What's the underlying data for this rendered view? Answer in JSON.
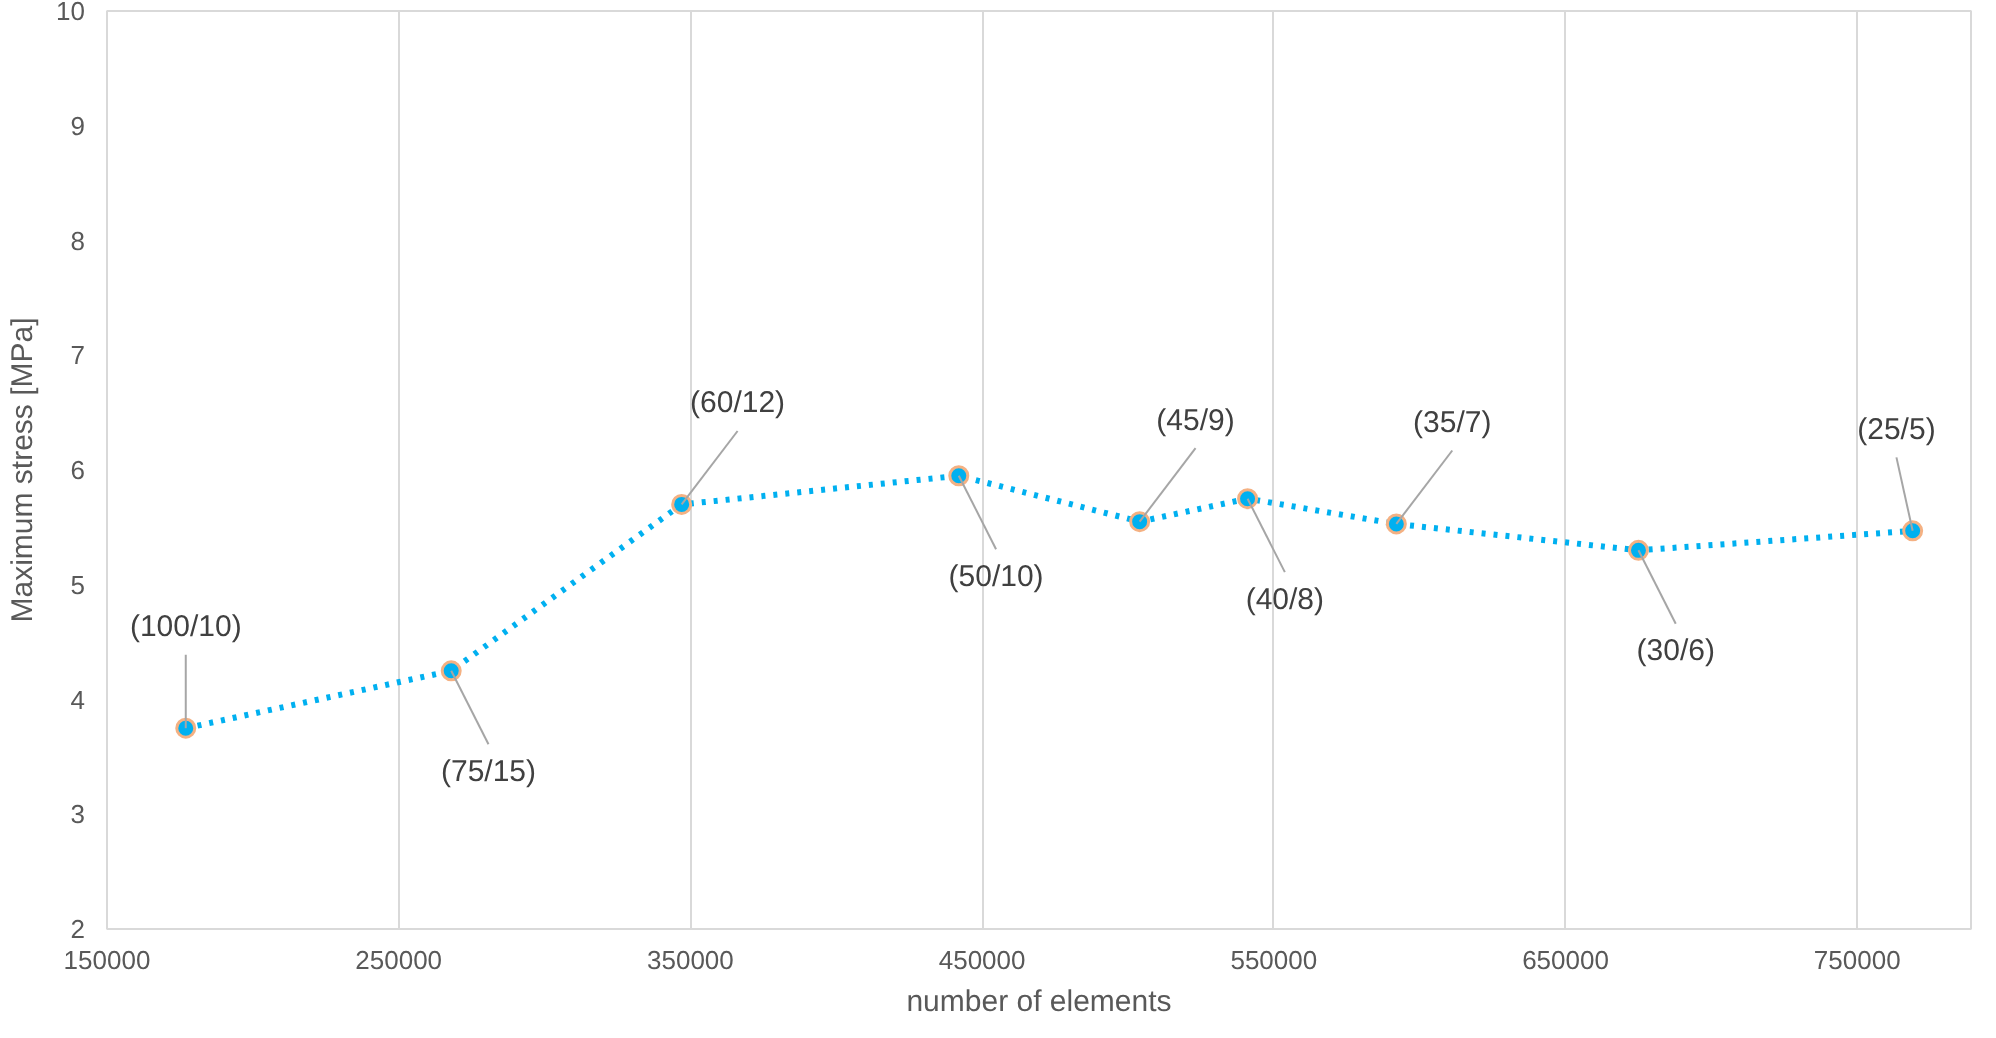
{
  "chart_data": {
    "type": "line",
    "xlabel": "number of elements",
    "ylabel": "Maximum stress [MPa]",
    "x": [
      177000,
      268000,
      347000,
      442000,
      504000,
      541000,
      592000,
      675000,
      769000
    ],
    "series": [
      {
        "color": "#00b0f0",
        "values": [
          3.75,
          4.25,
          5.7,
          5.95,
          5.55,
          5.75,
          5.53,
          5.3,
          5.47
        ]
      }
    ],
    "xlim": [
      150000,
      789000
    ],
    "xticks": [
      150000,
      250000,
      350000,
      450000,
      550000,
      650000,
      750000
    ],
    "ylim": [
      2,
      10
    ],
    "yticks": [
      2,
      3,
      4,
      5,
      6,
      7,
      8,
      9,
      10
    ],
    "annotations": [
      {
        "text": "(100/10)",
        "x": 177000,
        "y": 3.75
      },
      {
        "text": "(75/15)",
        "x": 268000,
        "y": 4.25
      },
      {
        "text": "(60/12)",
        "x": 347000,
        "y": 5.7
      },
      {
        "text": "(50/10)",
        "x": 442000,
        "y": 5.95
      },
      {
        "text": "(45/9)",
        "x": 504000,
        "y": 5.55
      },
      {
        "text": "(40/8)",
        "x": 541000,
        "y": 5.75
      },
      {
        "text": "(35/7)",
        "x": 592000,
        "y": 5.53
      },
      {
        "text": "(30/6)",
        "x": 675000,
        "y": 5.3
      },
      {
        "text": "(25/5)",
        "x": 769000,
        "y": 5.47
      }
    ],
    "grid": "x",
    "marker": "circle",
    "line_style": "dotted"
  }
}
